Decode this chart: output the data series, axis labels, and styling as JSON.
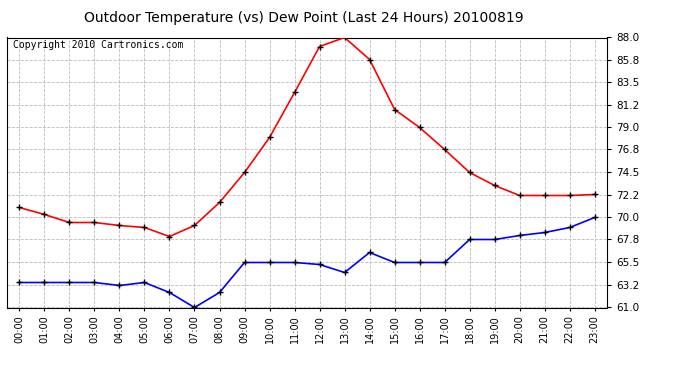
{
  "title": "Outdoor Temperature (vs) Dew Point (Last 24 Hours) 20100819",
  "copyright_text": "Copyright 2010 Cartronics.com",
  "hours": [
    "00:00",
    "01:00",
    "02:00",
    "03:00",
    "04:00",
    "05:00",
    "06:00",
    "07:00",
    "08:00",
    "09:00",
    "10:00",
    "11:00",
    "12:00",
    "13:00",
    "14:00",
    "15:00",
    "16:00",
    "17:00",
    "18:00",
    "19:00",
    "20:00",
    "21:00",
    "22:00",
    "23:00"
  ],
  "temp": [
    71.0,
    70.3,
    69.5,
    69.5,
    69.2,
    69.0,
    68.1,
    69.2,
    71.5,
    74.5,
    78.0,
    82.5,
    87.1,
    88.0,
    85.8,
    80.8,
    79.0,
    76.8,
    74.5,
    73.2,
    72.2,
    72.2,
    72.2,
    72.3
  ],
  "dew": [
    63.5,
    63.5,
    63.5,
    63.5,
    63.2,
    63.5,
    62.5,
    61.0,
    62.5,
    65.5,
    65.5,
    65.5,
    65.3,
    64.5,
    66.5,
    65.5,
    65.5,
    65.5,
    67.8,
    67.8,
    68.2,
    68.5,
    69.0,
    70.0
  ],
  "temp_color": "#ff0000",
  "dew_color": "#0000ff",
  "bg_color": "#ffffff",
  "grid_color": "#bbbbbb",
  "ylim": [
    61.0,
    88.0
  ],
  "yticks": [
    61.0,
    63.2,
    65.5,
    67.8,
    70.0,
    72.2,
    74.5,
    76.8,
    79.0,
    81.2,
    83.5,
    85.8,
    88.0
  ],
  "marker": "+",
  "marker_color": "#000000",
  "marker_size": 5,
  "linewidth": 1.2,
  "title_fontsize": 10,
  "copyright_fontsize": 7,
  "tick_fontsize": 7.5,
  "xtick_fontsize": 7
}
